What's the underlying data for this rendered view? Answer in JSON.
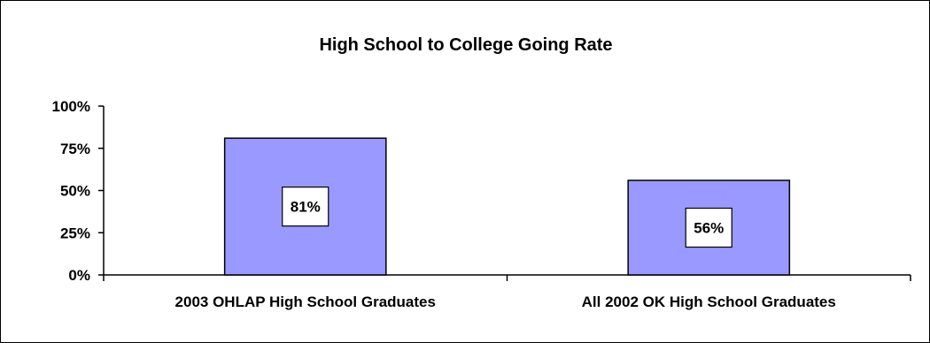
{
  "chart_data": {
    "type": "bar",
    "title": "High School to College Going Rate",
    "categories": [
      "2003 OHLAP High School Graduates",
      "All 2002 OK High School Graduates"
    ],
    "values": [
      81,
      56
    ],
    "data_labels": [
      "81%",
      "56%"
    ],
    "ylim": [
      0,
      100
    ],
    "yticks": [
      0,
      25,
      50,
      75,
      100
    ],
    "ytick_labels": [
      "0%",
      "25%",
      "50%",
      "75%",
      "100%"
    ],
    "grid": false,
    "legend": "none",
    "colors": {
      "bar_fill": "#9999ff",
      "bar_stroke": "#000000"
    }
  }
}
